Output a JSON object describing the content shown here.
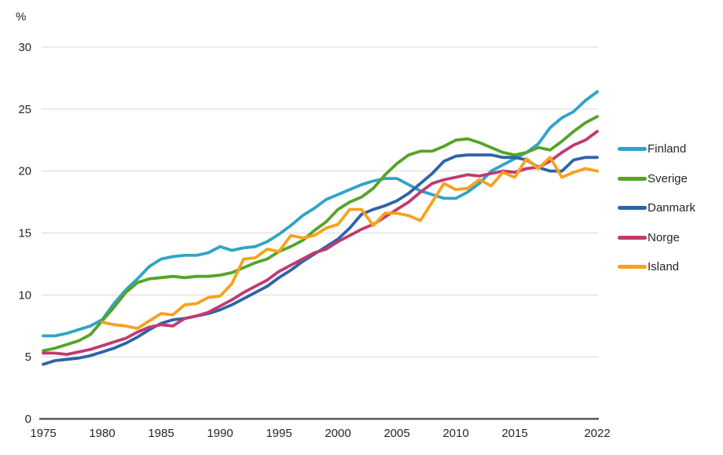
{
  "chart_data": {
    "type": "line",
    "title": "",
    "unit_label": "%",
    "grid": true,
    "legend_position": "right",
    "x": [
      1975,
      1976,
      1977,
      1978,
      1979,
      1980,
      1981,
      1982,
      1983,
      1984,
      1985,
      1986,
      1987,
      1988,
      1989,
      1990,
      1991,
      1992,
      1993,
      1994,
      1995,
      1996,
      1997,
      1998,
      1999,
      2000,
      2001,
      2002,
      2003,
      2004,
      2005,
      2006,
      2007,
      2008,
      2009,
      2010,
      2011,
      2012,
      2013,
      2014,
      2015,
      2016,
      2017,
      2018,
      2019,
      2020,
      2021,
      2022
    ],
    "x_axis": {
      "tick_years": [
        1975,
        1980,
        1985,
        1990,
        1995,
        2000,
        2005,
        2010,
        2015,
        2022
      ]
    },
    "y_axis": {
      "ticks": [
        0,
        5,
        10,
        15,
        20,
        25,
        30
      ],
      "min": 0,
      "max": 30
    },
    "series": [
      {
        "name": "Finland",
        "color": "#2FA4C7",
        "values": [
          6.7,
          6.7,
          6.9,
          7.2,
          7.5,
          8.0,
          9.3,
          10.4,
          11.3,
          12.3,
          12.9,
          13.1,
          13.2,
          13.2,
          13.4,
          13.9,
          13.6,
          13.8,
          13.9,
          14.3,
          14.9,
          15.6,
          16.4,
          17.0,
          17.7,
          18.1,
          18.5,
          18.9,
          19.2,
          19.4,
          19.4,
          18.9,
          18.4,
          18.1,
          17.8,
          17.8,
          18.3,
          19.0,
          20.0,
          20.5,
          21.0,
          21.5,
          22.2,
          23.5,
          24.3,
          24.8,
          25.7,
          26.4
        ]
      },
      {
        "name": "Sverige",
        "color": "#55A428",
        "values": [
          5.5,
          5.7,
          6.0,
          6.3,
          6.8,
          7.9,
          9.0,
          10.2,
          11.0,
          11.3,
          11.4,
          11.5,
          11.4,
          11.5,
          11.5,
          11.6,
          11.8,
          12.2,
          12.6,
          12.9,
          13.5,
          13.9,
          14.4,
          15.2,
          15.9,
          16.9,
          17.5,
          17.9,
          18.6,
          19.7,
          20.6,
          21.3,
          21.6,
          21.6,
          22.0,
          22.5,
          22.6,
          22.3,
          21.9,
          21.5,
          21.3,
          21.5,
          21.9,
          21.7,
          22.4,
          23.2,
          23.9,
          24.4
        ]
      },
      {
        "name": "Danmark",
        "color": "#2E64A8",
        "values": [
          4.4,
          4.7,
          4.8,
          4.9,
          5.1,
          5.4,
          5.7,
          6.1,
          6.6,
          7.2,
          7.7,
          8.0,
          8.1,
          8.3,
          8.5,
          8.8,
          9.2,
          9.7,
          10.2,
          10.7,
          11.4,
          12.0,
          12.7,
          13.3,
          13.9,
          14.5,
          15.4,
          16.5,
          16.9,
          17.2,
          17.6,
          18.2,
          19.0,
          19.8,
          20.8,
          21.2,
          21.3,
          21.3,
          21.3,
          21.1,
          21.1,
          20.9,
          20.3,
          20.0,
          20.0,
          20.9,
          21.1,
          21.1
        ]
      },
      {
        "name": "Norge",
        "color": "#C13A6F",
        "values": [
          5.3,
          5.3,
          5.2,
          5.4,
          5.6,
          5.9,
          6.2,
          6.5,
          7.0,
          7.4,
          7.6,
          7.5,
          8.1,
          8.3,
          8.6,
          9.1,
          9.6,
          10.2,
          10.7,
          11.2,
          11.9,
          12.4,
          12.9,
          13.4,
          13.7,
          14.3,
          14.8,
          15.3,
          15.7,
          16.3,
          16.9,
          17.5,
          18.3,
          19.0,
          19.3,
          19.5,
          19.7,
          19.6,
          19.8,
          20.0,
          19.9,
          20.2,
          20.3,
          20.8,
          21.5,
          22.1,
          22.5,
          23.2
        ]
      },
      {
        "name": "Island",
        "color": "#F6A21E",
        "values": [
          null,
          null,
          null,
          null,
          null,
          7.8,
          7.6,
          7.5,
          7.3,
          7.9,
          8.5,
          8.4,
          9.2,
          9.3,
          9.8,
          9.9,
          10.9,
          12.9,
          13.0,
          13.7,
          13.5,
          14.8,
          14.6,
          14.8,
          15.4,
          15.7,
          16.9,
          16.9,
          15.6,
          16.6,
          16.6,
          16.4,
          16.0,
          17.5,
          19.0,
          18.5,
          18.6,
          19.3,
          18.8,
          19.9,
          19.5,
          21.0,
          20.2,
          21.1,
          19.5,
          19.9,
          20.2,
          20.0
        ]
      }
    ],
    "colors": {
      "gridline": "#D9D9D9",
      "axis_line": "#595959",
      "tick_text": "#262626",
      "background": "#FFFFFF"
    }
  }
}
